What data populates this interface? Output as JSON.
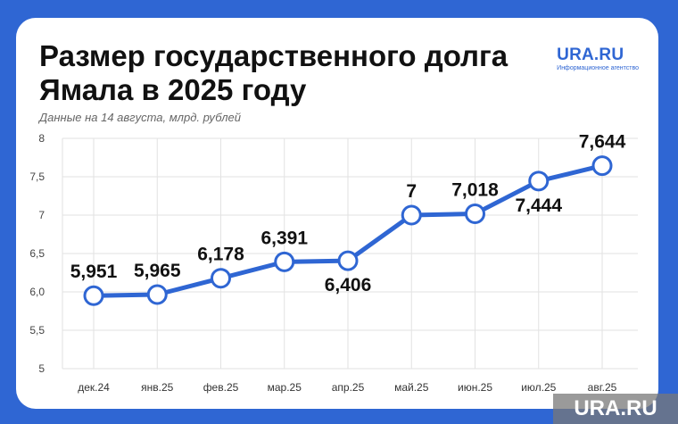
{
  "header": {
    "title": "Размер государственного долга Ямала в 2025 году",
    "subtitle": "Данные на 14 августа, млрд. рублей"
  },
  "brand": {
    "logo_name": "URA.RU",
    "logo_tagline": "Информационное агентство",
    "watermark": "URA.RU"
  },
  "colors": {
    "background": "#2f66d3",
    "line": "#2f66d3",
    "grid": "#e2e2e2",
    "text": "#111111"
  },
  "chart_data": {
    "type": "line",
    "categories": [
      "дек.24",
      "янв.25",
      "фев.25",
      "мар.25",
      "апр.25",
      "май.25",
      "июн.25",
      "июл.25",
      "авг.25"
    ],
    "values": [
      5.951,
      5.965,
      6.178,
      6.391,
      6.406,
      7,
      7.018,
      7.444,
      7.644
    ],
    "data_labels": [
      "5,951",
      "5,965",
      "6,178",
      "6,391",
      "6,406",
      "7",
      "7,018",
      "7,444",
      "7,644"
    ],
    "yticks": [
      "5",
      "5,5",
      "6,0",
      "6,5",
      "7",
      "7,5",
      "8"
    ],
    "ylim": [
      5,
      8
    ],
    "grid": true,
    "title": "Размер государственного долга Ямала в 2025 году",
    "xlabel": "",
    "ylabel": ""
  }
}
